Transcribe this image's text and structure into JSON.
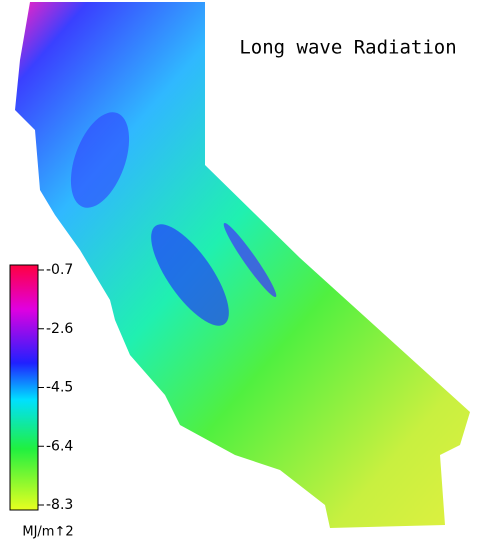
{
  "title": "Long wave Radiation",
  "colorbar": {
    "range": [
      -8.3,
      -0.7
    ],
    "ticks": [
      -0.7,
      -2.6,
      -4.5,
      -6.4,
      -8.3
    ],
    "unit": "MJ/m↑2"
  }
}
